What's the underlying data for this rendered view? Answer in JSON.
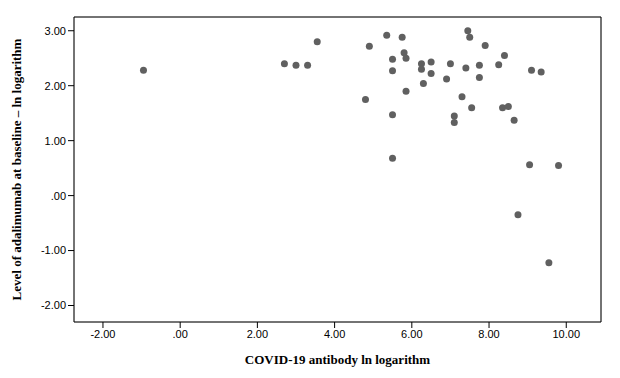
{
  "chart_data": {
    "type": "scatter",
    "x_label": "COVID-19 antibody ln logarithm",
    "y_label": "Level of adalimumab at baseline – ln logarithm",
    "x": [
      -0.95,
      2.7,
      3.0,
      3.3,
      3.55,
      4.8,
      4.9,
      5.35,
      5.5,
      5.5,
      5.5,
      5.5,
      5.75,
      5.8,
      5.85,
      5.85,
      6.25,
      6.25,
      6.3,
      6.5,
      6.5,
      6.9,
      7.0,
      7.1,
      7.1,
      7.3,
      7.4,
      7.45,
      7.5,
      7.55,
      7.75,
      7.75,
      7.9,
      8.25,
      8.35,
      8.4,
      8.5,
      8.65,
      8.75,
      9.05,
      9.1,
      9.35,
      9.55,
      9.8
    ],
    "values": [
      2.28,
      2.4,
      2.37,
      2.37,
      2.8,
      1.75,
      2.72,
      2.92,
      2.48,
      2.27,
      1.47,
      0.68,
      2.88,
      2.6,
      2.5,
      1.9,
      2.4,
      2.3,
      2.04,
      2.43,
      2.22,
      2.12,
      2.4,
      1.45,
      1.33,
      1.8,
      2.32,
      3.0,
      2.88,
      1.6,
      2.37,
      2.15,
      2.73,
      2.38,
      1.6,
      2.55,
      1.62,
      1.37,
      -0.35,
      0.56,
      2.28,
      2.25,
      -1.22,
      0.55
    ],
    "color": "#606060",
    "xlim": [
      -2.75,
      10.9
    ],
    "ylim": [
      -2.3,
      3.25
    ],
    "xticks": [
      {
        "value": -2,
        "label": "-2.00"
      },
      {
        "value": 0,
        "label": ".00"
      },
      {
        "value": 2,
        "label": "2.00"
      },
      {
        "value": 4,
        "label": "4.00"
      },
      {
        "value": 6,
        "label": "6.00"
      },
      {
        "value": 8,
        "label": "8.00"
      },
      {
        "value": 10,
        "label": "10.00"
      }
    ],
    "yticks": [
      {
        "value": -2,
        "label": "-2.00"
      },
      {
        "value": -1,
        "label": "-1.00"
      },
      {
        "value": 0,
        "label": ".00"
      },
      {
        "value": 1,
        "label": "1.00"
      },
      {
        "value": 2,
        "label": "2.00"
      },
      {
        "value": 3,
        "label": "3.00"
      }
    ],
    "grid": true
  }
}
